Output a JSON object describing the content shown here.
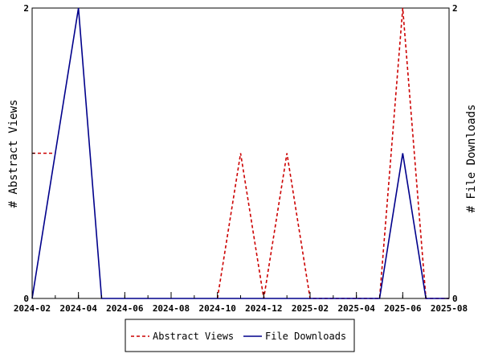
{
  "chart_data": {
    "type": "line",
    "x": [
      "2024-02",
      "2024-03",
      "2024-04",
      "2024-05",
      "2024-06",
      "2024-07",
      "2024-08",
      "2024-09",
      "2024-10",
      "2024-11",
      "2024-12",
      "2025-01",
      "2025-02",
      "2025-03",
      "2025-04",
      "2025-05",
      "2025-06",
      "2025-07",
      "2025-08"
    ],
    "series": [
      {
        "name": "Abstract Views",
        "axis": "left",
        "color": "#cc0000",
        "style": "dashed",
        "values": [
          1,
          1,
          null,
          null,
          null,
          null,
          null,
          null,
          0,
          1,
          0,
          1,
          0,
          0,
          0,
          0,
          2,
          0,
          0
        ]
      },
      {
        "name": "File Downloads",
        "axis": "right",
        "color": "#00008b",
        "style": "solid",
        "values": [
          0,
          1,
          2,
          0,
          0,
          0,
          0,
          0,
          0,
          0,
          0,
          0,
          0,
          0,
          0,
          0,
          1,
          0,
          0
        ]
      }
    ],
    "x_ticks": [
      "2024-02",
      "2024-04",
      "2024-06",
      "2024-08",
      "2024-10",
      "2024-12",
      "2025-02",
      "2025-04",
      "2025-06",
      "2025-08"
    ],
    "ylabel_left": "# Abstract Views",
    "ylabel_right": "# File Downloads",
    "ylim_left": [
      0,
      2
    ],
    "ylim_right": [
      0,
      2
    ],
    "y_ticks_left": [
      "0",
      "2"
    ],
    "y_ticks_right": [
      "0",
      "2"
    ],
    "grid": false,
    "legend_position": "bottom"
  },
  "legend": {
    "items": [
      {
        "label": "Abstract Views",
        "color": "#cc0000",
        "style": "dashed"
      },
      {
        "label": "File Downloads",
        "color": "#00008b",
        "style": "solid"
      }
    ]
  }
}
